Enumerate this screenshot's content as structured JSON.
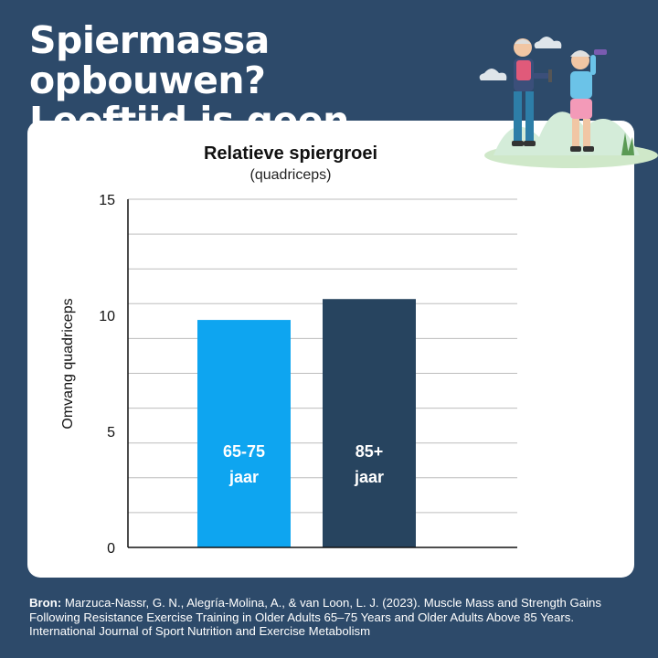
{
  "headline": {
    "line1": "Spiermassa opbouwen?",
    "line2": "Leeftijd is geen excuus"
  },
  "chart_data": {
    "type": "bar",
    "title": "Relatieve spiergroei",
    "subtitle": "(quadriceps)",
    "ylabel": "Omvang quadriceps",
    "ylim": [
      0,
      15
    ],
    "yticks": [
      0,
      5,
      10,
      15
    ],
    "grid": true,
    "categories": [
      "65-75 jaar",
      "85+ jaar"
    ],
    "bars": [
      {
        "line1": "65-75",
        "line2": "jaar",
        "value": 9.8,
        "color": "#0ea5f0"
      },
      {
        "line1": "85+",
        "line2": "jaar",
        "value": 10.7,
        "color": "#27445f"
      }
    ],
    "values": [
      9.8,
      10.7
    ]
  },
  "source": {
    "label": "Bron:",
    "text": "Marzuca-Nassr, G. N., Alegría-Molina, A., & van Loon, L. J. (2023). Muscle Mass and Strength Gains Following Resistance Exercise Training in Older Adults 65–75 Years and Older Adults Above 85 Years. International Journal of Sport Nutrition and Exercise Metabolism"
  },
  "colors": {
    "background": "#2d4a6a",
    "card": "#ffffff",
    "accent_light": "#0ea5f0",
    "accent_dark": "#27445f"
  }
}
